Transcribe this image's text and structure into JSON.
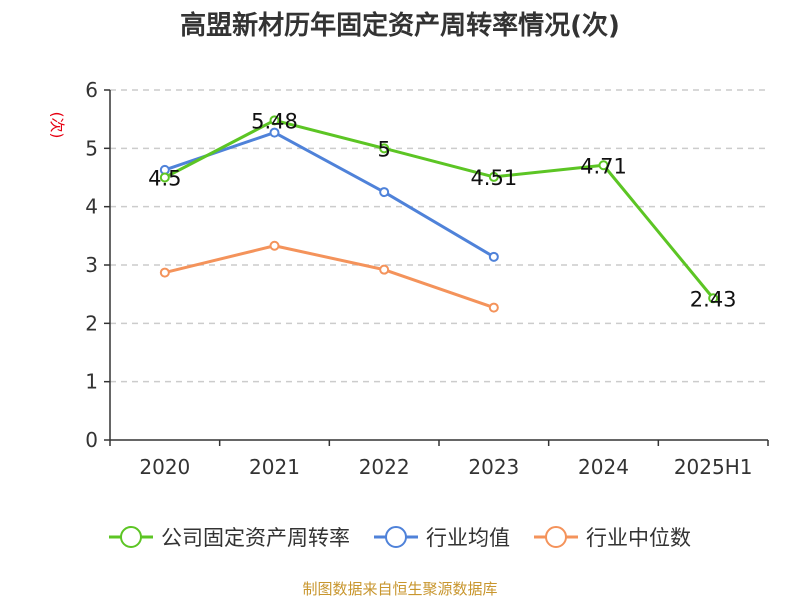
{
  "chart_data": {
    "type": "line",
    "title": "高盟新材历年固定资产周转率情况(次)",
    "ylabel": "(次)",
    "xlabel": "",
    "categories": [
      "2020",
      "2021",
      "2022",
      "2023",
      "2024",
      "2025H1"
    ],
    "ylim": [
      0,
      6
    ],
    "yticks": [
      0,
      1,
      2,
      3,
      4,
      5,
      6
    ],
    "grid": true,
    "legend_position": "bottom",
    "series": [
      {
        "name": "公司固定资产周转率",
        "color": "#5cc524",
        "values": [
          4.5,
          5.48,
          5,
          4.51,
          4.71,
          2.43
        ],
        "labels": [
          "4.5",
          "5.48",
          "5",
          "4.51",
          "4.71",
          "2.43"
        ],
        "show_labels": true
      },
      {
        "name": "行业均值",
        "color": "#4f82d9",
        "values": [
          4.63,
          5.27,
          4.25,
          3.14,
          null,
          null
        ],
        "show_labels": false
      },
      {
        "name": "行业中位数",
        "color": "#f4935b",
        "values": [
          2.87,
          3.33,
          2.92,
          2.27,
          null,
          null
        ],
        "show_labels": false
      }
    ],
    "source": "制图数据来自恒生聚源数据库"
  }
}
